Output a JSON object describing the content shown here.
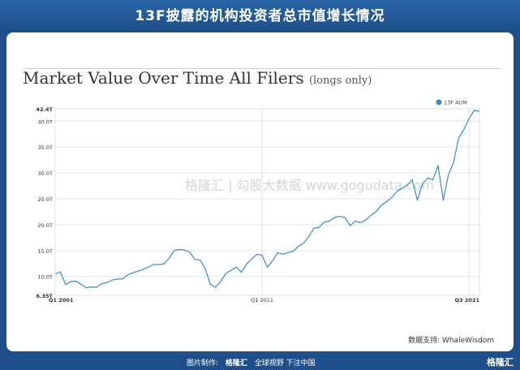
{
  "banner": {
    "title": "13F披露的机构投资者总市值增长情况"
  },
  "header": {
    "title": "Market Value Over Time All Filers",
    "subtitle": "(longs only)"
  },
  "watermark": {
    "text": "格隆汇 | 勾股大数据 www.gogudata.com"
  },
  "source": {
    "text": "数据支持: WhaleWisdom"
  },
  "footer": {
    "credit_label": "图片制作:",
    "credit_logo": "格隆汇",
    "slogan": "全球视野 下注中国",
    "brand": "格隆汇"
  },
  "chart_data": {
    "type": "line",
    "title": "Market Value Over Time All Filers",
    "subtitle": "(longs only)",
    "xlabel": "",
    "ylabel": "",
    "x_tick_labels": [
      "Q1 2001",
      "Q1 2011",
      "Q3 2021"
    ],
    "y_tick_labels": [
      "6.35T",
      "10.0T",
      "15.0T",
      "20.0T",
      "25.0T",
      "30.0T",
      "35.0T",
      "40.0T",
      "42.4T"
    ],
    "ylim": [
      6.35,
      42.4
    ],
    "grid": true,
    "legend_position": "top-right",
    "series": [
      {
        "name": "13F AUM",
        "color": "#3d8bc4",
        "x": [
          0,
          1,
          2,
          3,
          4,
          5,
          6,
          7,
          8,
          9,
          10,
          11,
          12,
          13,
          14,
          15,
          16,
          17,
          18,
          19,
          20,
          21,
          22,
          23,
          24,
          25,
          26,
          27,
          28,
          29,
          30,
          31,
          32,
          33,
          34,
          35,
          36,
          37,
          38,
          39,
          40,
          41,
          42,
          43,
          44,
          45,
          46,
          47,
          48,
          49,
          50,
          51,
          52,
          53,
          54,
          55,
          56,
          57,
          58,
          59,
          60,
          61,
          62,
          63,
          64,
          65,
          66,
          67,
          68,
          69,
          70,
          71,
          72,
          73,
          74,
          75,
          76,
          77,
          78,
          79,
          80,
          81,
          82
        ],
        "values": [
          10.5,
          10.9,
          8.4,
          9.0,
          9.1,
          8.5,
          7.8,
          8.0,
          7.9,
          8.6,
          8.8,
          9.3,
          9.5,
          9.5,
          10.3,
          10.7,
          11.0,
          11.4,
          11.8,
          12.3,
          12.3,
          12.4,
          13.5,
          15.0,
          15.2,
          15.1,
          14.7,
          13.3,
          13.2,
          11.5,
          8.5,
          7.9,
          9.1,
          10.6,
          11.2,
          11.8,
          10.8,
          12.4,
          13.4,
          14.3,
          14.1,
          11.8,
          13.0,
          14.6,
          14.3,
          14.6,
          14.9,
          15.8,
          16.4,
          17.7,
          19.3,
          19.5,
          20.5,
          20.7,
          21.4,
          21.6,
          21.4,
          19.8,
          20.7,
          20.4,
          20.9,
          21.8,
          22.5,
          23.7,
          24.4,
          25.2,
          26.4,
          27.0,
          27.6,
          28.7,
          24.7,
          27.9,
          29.0,
          28.7,
          31.4,
          24.7,
          29.6,
          32.0,
          36.8,
          38.4,
          40.5,
          42.1,
          41.9
        ]
      }
    ]
  }
}
